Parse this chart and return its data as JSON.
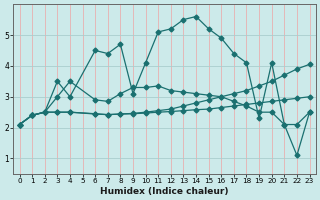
{
  "xlabel": "Humidex (Indice chaleur)",
  "ylabel": "",
  "bg_color": "#cceaea",
  "grid_color_major": "#aacece",
  "grid_color_minor": "#e8b0b0",
  "line_color": "#1a7070",
  "xlim": [
    -0.5,
    23.5
  ],
  "ylim": [
    0.5,
    6.0
  ],
  "yticks": [
    1,
    2,
    3,
    4,
    5
  ],
  "xticks": [
    0,
    1,
    2,
    3,
    4,
    5,
    6,
    7,
    8,
    9,
    10,
    11,
    12,
    13,
    14,
    15,
    16,
    17,
    18,
    19,
    20,
    21,
    22,
    23
  ],
  "series": [
    {
      "x": [
        0,
        1,
        2,
        3,
        4,
        6,
        7,
        8,
        9,
        10,
        11,
        12,
        13,
        14,
        15,
        16,
        17,
        18,
        19,
        20,
        21,
        22,
        23
      ],
      "y": [
        2.1,
        2.4,
        2.5,
        3.5,
        3.0,
        4.5,
        4.4,
        4.7,
        3.1,
        4.1,
        5.1,
        5.2,
        5.5,
        5.6,
        5.2,
        4.9,
        4.4,
        4.1,
        2.3,
        4.1,
        2.1,
        1.1,
        2.5
      ]
    },
    {
      "x": [
        0,
        1,
        2,
        3,
        4,
        6,
        7,
        8,
        9,
        10,
        11,
        12,
        13,
        14,
        15,
        16,
        17,
        18,
        19,
        20,
        21,
        22,
        23
      ],
      "y": [
        2.1,
        2.4,
        2.5,
        3.0,
        3.5,
        2.9,
        2.85,
        3.1,
        3.3,
        3.3,
        3.35,
        3.2,
        3.15,
        3.1,
        3.05,
        3.0,
        2.85,
        2.7,
        2.5,
        2.5,
        2.1,
        2.1,
        2.5
      ]
    },
    {
      "x": [
        0,
        1,
        2,
        3,
        4,
        6,
        7,
        8,
        9,
        10,
        11,
        12,
        13,
        14,
        15,
        16,
        17,
        18,
        19,
        20,
        21,
        22,
        23
      ],
      "y": [
        2.1,
        2.4,
        2.5,
        2.5,
        2.5,
        2.45,
        2.42,
        2.44,
        2.46,
        2.5,
        2.55,
        2.6,
        2.7,
        2.8,
        2.9,
        3.0,
        3.1,
        3.2,
        3.35,
        3.5,
        3.7,
        3.9,
        4.05
      ]
    },
    {
      "x": [
        0,
        1,
        2,
        3,
        4,
        6,
        7,
        8,
        9,
        10,
        11,
        12,
        13,
        14,
        15,
        16,
        17,
        18,
        19,
        20,
        21,
        22,
        23
      ],
      "y": [
        2.1,
        2.4,
        2.5,
        2.5,
        2.5,
        2.44,
        2.42,
        2.44,
        2.45,
        2.47,
        2.5,
        2.52,
        2.55,
        2.58,
        2.6,
        2.65,
        2.7,
        2.75,
        2.8,
        2.85,
        2.9,
        2.95,
        3.0
      ]
    }
  ]
}
